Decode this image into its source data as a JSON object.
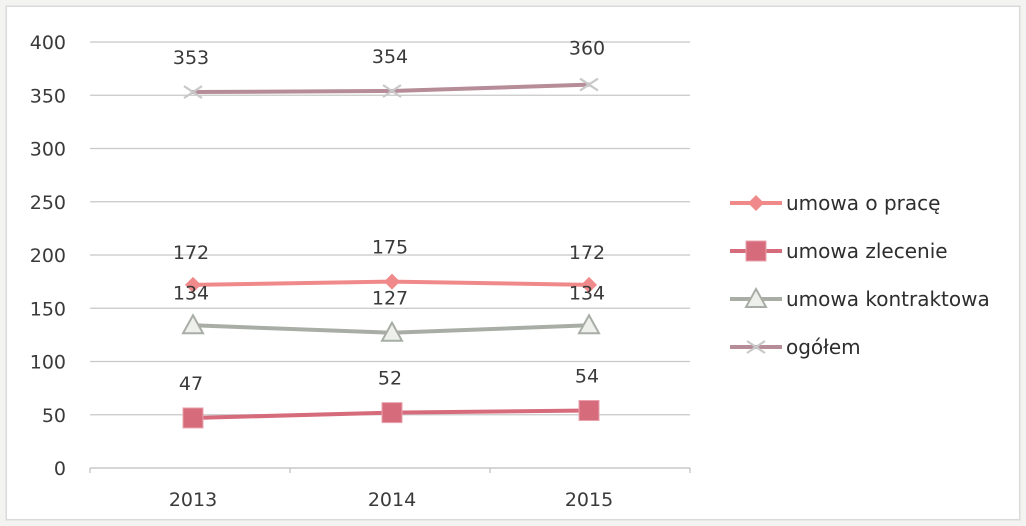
{
  "chart_data": {
    "type": "line",
    "categories": [
      "2013",
      "2014",
      "2015"
    ],
    "ylim": [
      0,
      400
    ],
    "y_ticks": [
      0,
      50,
      100,
      150,
      200,
      250,
      300,
      350,
      400
    ],
    "grid": true,
    "legend_position": "right",
    "series": [
      {
        "name": "umowa o pracę",
        "values": [
          172,
          175,
          172
        ],
        "color": "#f08a8a",
        "marker": "diamond"
      },
      {
        "name": "umowa zlecenie",
        "values": [
          47,
          52,
          54
        ],
        "color": "#d66b7b",
        "marker": "square"
      },
      {
        "name": "umowa kontraktowa",
        "values": [
          134,
          127,
          134
        ],
        "color": "#a8aea6",
        "marker": "triangle"
      },
      {
        "name": "ogółem",
        "values": [
          353,
          354,
          360
        ],
        "color": "#b58c97",
        "marker": "x"
      }
    ]
  }
}
